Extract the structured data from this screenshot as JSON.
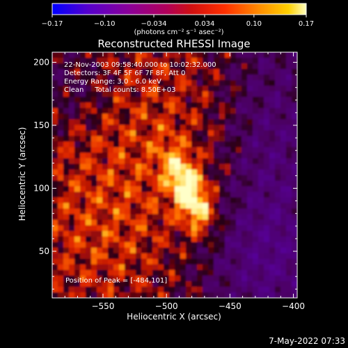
{
  "chart_data": {
    "type": "heatmap",
    "title": "Reconstructed RHESSI Image",
    "xlabel": "Heliocentric X (arcsec)",
    "ylabel": "Heliocentric Y (arcsec)",
    "xlim": [
      -590,
      -397
    ],
    "ylim": [
      13,
      208
    ],
    "xticks": [
      -550,
      -500,
      -450,
      -400
    ],
    "xtick_labels": [
      "−550",
      "−500",
      "−450",
      "−400"
    ],
    "yticks": [
      50,
      100,
      150,
      200
    ],
    "ytick_labels": [
      "50",
      "100",
      "150",
      "200"
    ],
    "colorbar": {
      "range": [
        -0.17,
        0.17
      ],
      "ticks": [
        -0.17,
        -0.1,
        -0.034,
        0.034,
        0.1,
        0.17
      ],
      "tick_labels": [
        "−0.17",
        "−0.10",
        "−0.034",
        "0.034",
        "0.10",
        "0.17"
      ],
      "unit_label": "(photons cm⁻² s⁻¹ asec⁻²)",
      "colormap": "rainbow-to-hot",
      "colors": [
        "#0000ff",
        "#5500cc",
        "#8a0099",
        "#b0005a",
        "#d01010",
        "#ff3000",
        "#ff9000",
        "#ffd000",
        "#ffffc0"
      ]
    },
    "annotations": {
      "time_range": "22-Nov-2003 09:58:40.000 to 10:02:32.000",
      "detectors": "Detectors: 3F 4F 5F 6F 7F 8F, Att 0",
      "energy_range": "Energy Range: 3.0 - 6.0 keV",
      "method_and_counts": "Clean     Total counts: 8.50E+03",
      "peak_position": "Position of Peak = [-484,101]"
    },
    "peak": {
      "x": -484,
      "y": 101
    },
    "grid": false,
    "timestamp": "7-May-2022 07:33"
  }
}
